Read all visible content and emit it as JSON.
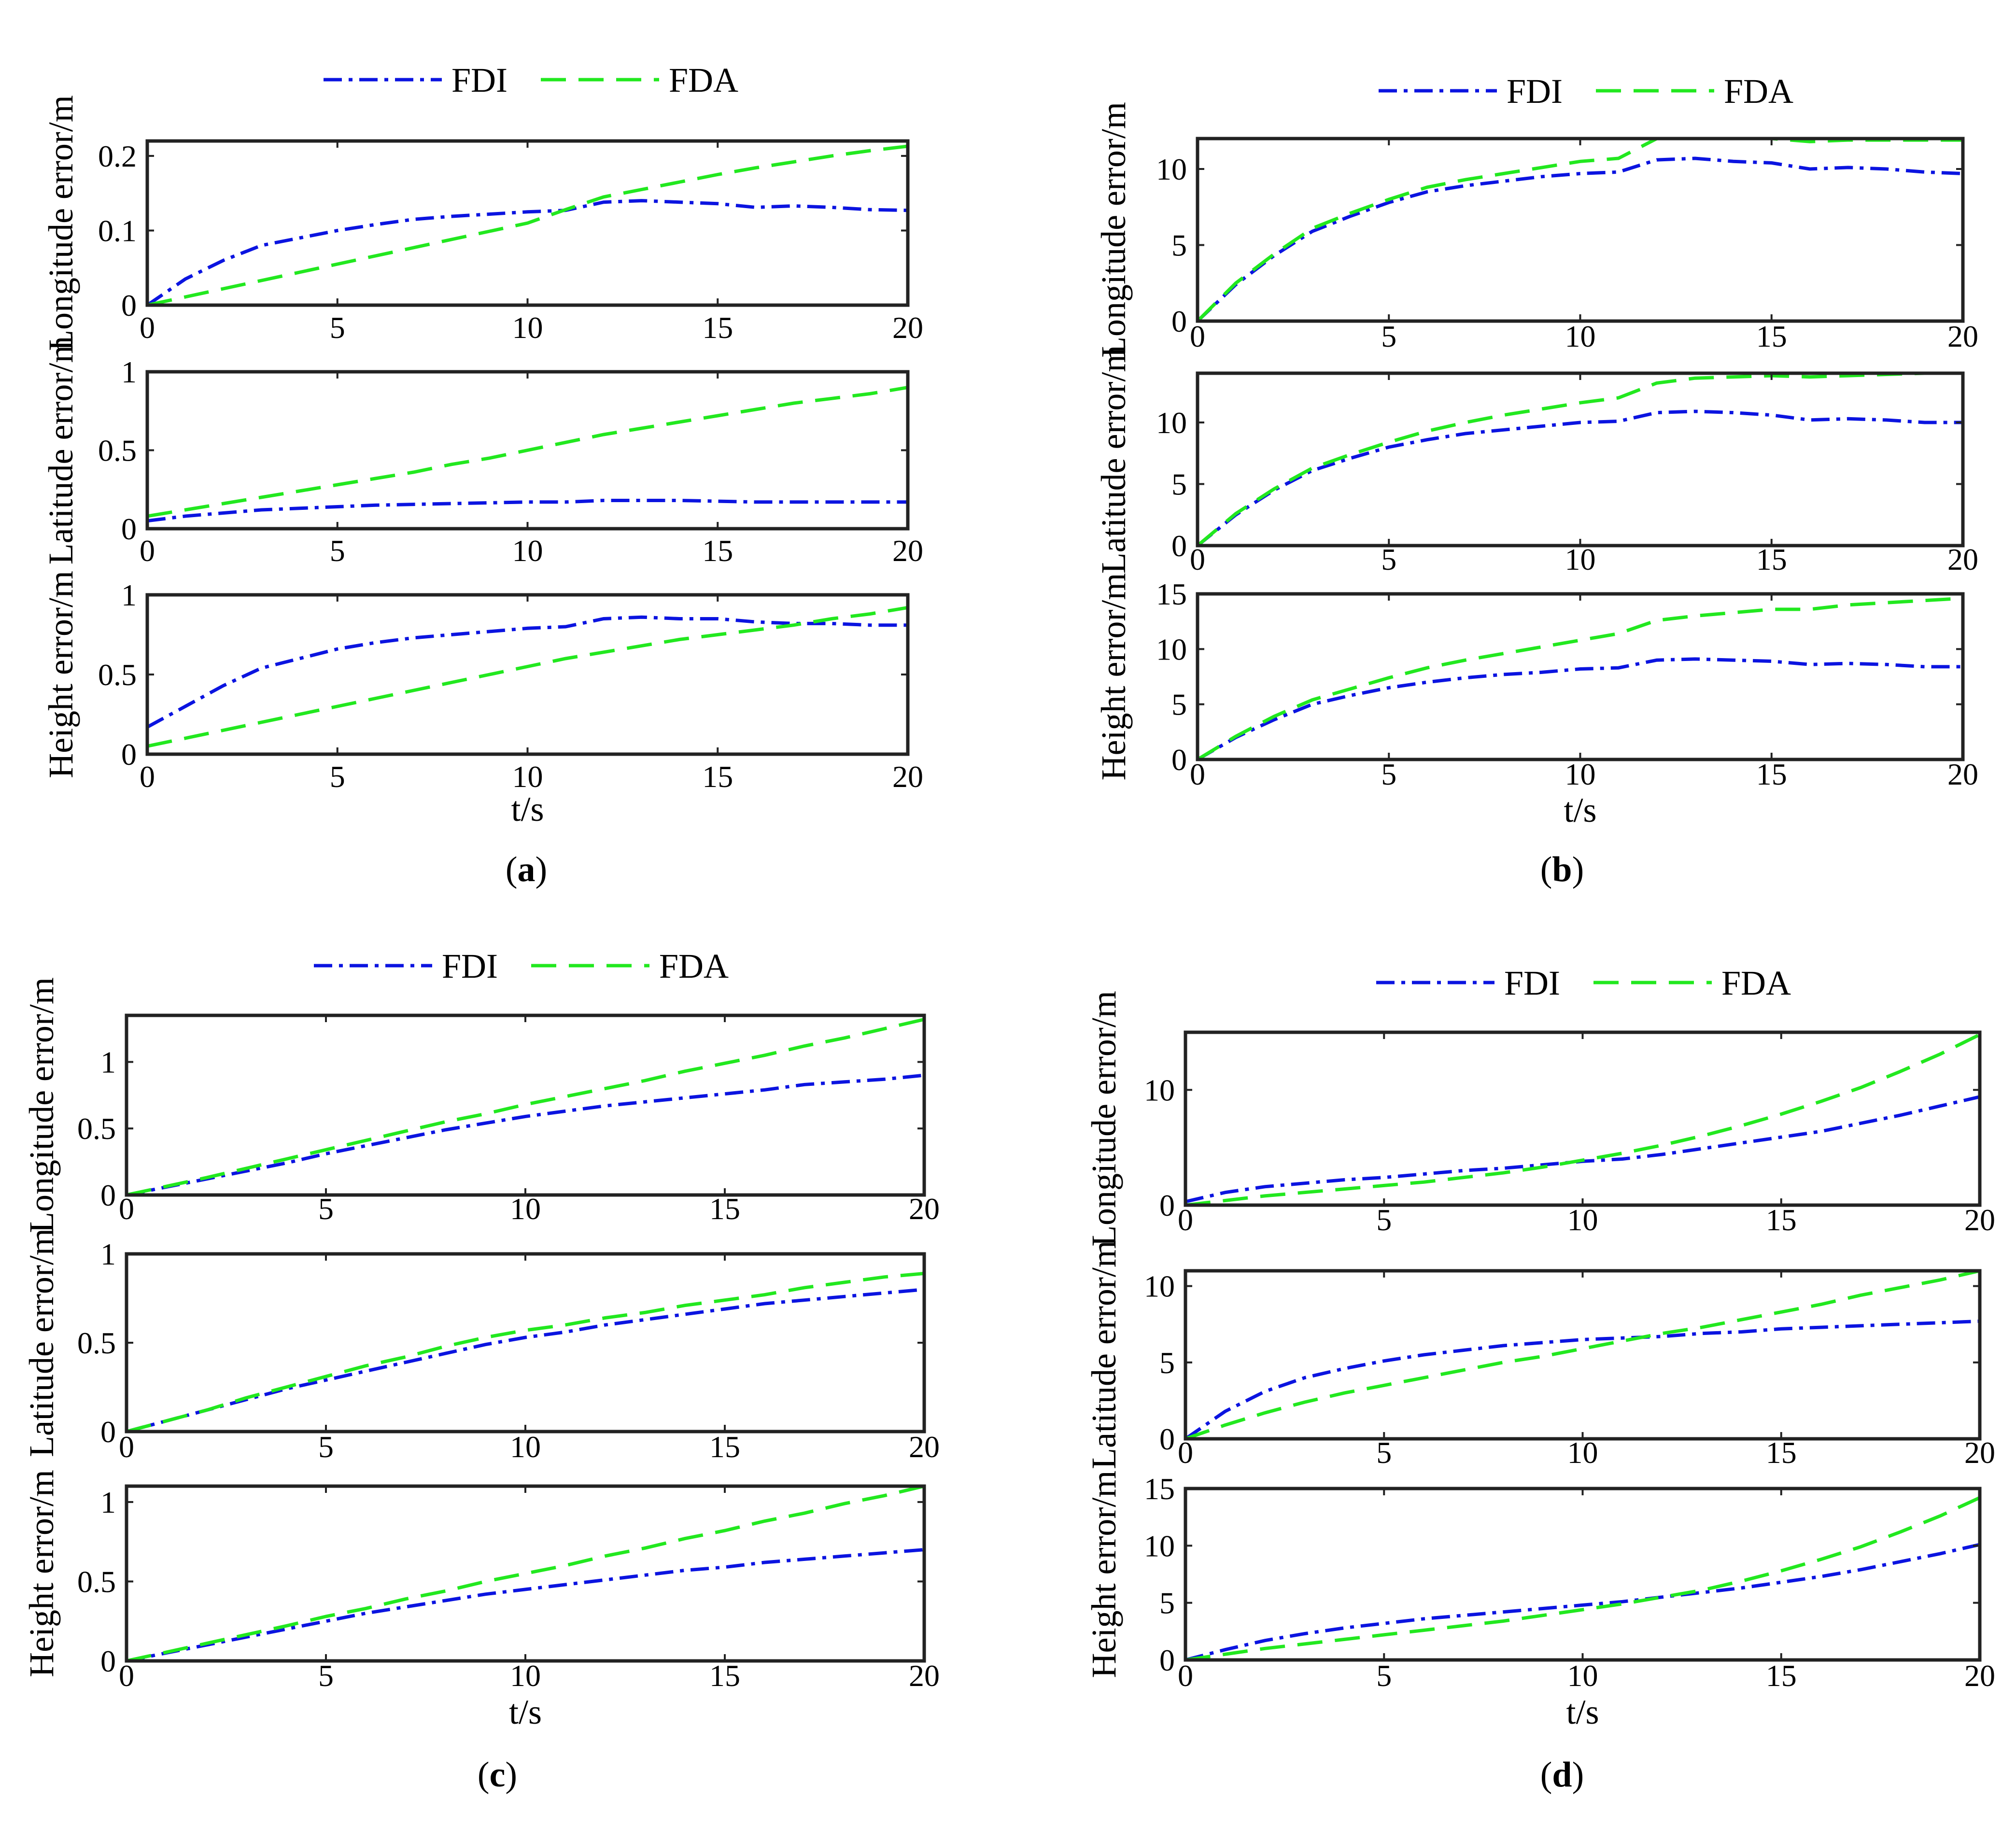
{
  "figure_caption_labels": [
    "a",
    "b",
    "c",
    "d"
  ],
  "legend": {
    "fdi_label": "FDI",
    "fda_label": "FDA"
  },
  "colors": {
    "fdi": "#0b14e0",
    "fda": "#22e81f",
    "axes": "#222222"
  },
  "chart_data": [
    {
      "panel": "a",
      "type": "line",
      "xlabel": "t/s",
      "x": [
        0,
        1,
        2,
        3,
        4,
        5,
        6,
        7,
        8,
        9,
        10,
        11,
        12,
        13,
        14,
        15,
        16,
        17,
        18,
        19,
        20
      ],
      "xlim": [
        0,
        20
      ],
      "xticks": [
        "0",
        "5",
        "10",
        "15",
        "20"
      ],
      "subplots": [
        {
          "ylabel": "Longitude error/m",
          "ylim": [
            0,
            0.22
          ],
          "yticks": [
            "0",
            "0.1",
            "0.2"
          ],
          "ytick_values": [
            0,
            0.1,
            0.2
          ],
          "series": [
            {
              "name": "FDI",
              "values": [
                0,
                0.035,
                0.06,
                0.08,
                0.09,
                0.1,
                0.108,
                0.115,
                0.119,
                0.122,
                0.125,
                0.127,
                0.138,
                0.14,
                0.138,
                0.136,
                0.131,
                0.133,
                0.131,
                0.128,
                0.127
              ]
            },
            {
              "name": "FDA",
              "values": [
                0,
                0.011,
                0.022,
                0.033,
                0.044,
                0.055,
                0.066,
                0.077,
                0.088,
                0.099,
                0.11,
                0.128,
                0.145,
                0.155,
                0.165,
                0.175,
                0.184,
                0.192,
                0.2,
                0.207,
                0.213
              ]
            }
          ]
        },
        {
          "ylabel": "Latitude error/m",
          "ylim": [
            0,
            1
          ],
          "yticks": [
            "0",
            "0.5",
            "1"
          ],
          "ytick_values": [
            0,
            0.5,
            1
          ],
          "series": [
            {
              "name": "FDI",
              "values": [
                0.05,
                0.08,
                0.1,
                0.12,
                0.13,
                0.14,
                0.15,
                0.155,
                0.16,
                0.165,
                0.17,
                0.17,
                0.18,
                0.18,
                0.18,
                0.175,
                0.17,
                0.17,
                0.17,
                0.17,
                0.17
              ]
            },
            {
              "name": "FDA",
              "values": [
                0.08,
                0.12,
                0.16,
                0.2,
                0.24,
                0.28,
                0.32,
                0.36,
                0.41,
                0.45,
                0.5,
                0.55,
                0.6,
                0.64,
                0.68,
                0.72,
                0.76,
                0.8,
                0.83,
                0.86,
                0.9
              ]
            }
          ]
        },
        {
          "ylabel": "Height error/m",
          "ylim": [
            0,
            1
          ],
          "yticks": [
            "0",
            "0.5",
            "1"
          ],
          "ytick_values": [
            0,
            0.5,
            1
          ],
          "series": [
            {
              "name": "FDI",
              "values": [
                0.17,
                0.3,
                0.43,
                0.54,
                0.6,
                0.66,
                0.7,
                0.73,
                0.75,
                0.77,
                0.79,
                0.8,
                0.85,
                0.86,
                0.85,
                0.85,
                0.83,
                0.82,
                0.82,
                0.81,
                0.81
              ]
            },
            {
              "name": "FDA",
              "values": [
                0.05,
                0.1,
                0.15,
                0.2,
                0.25,
                0.3,
                0.35,
                0.4,
                0.45,
                0.5,
                0.55,
                0.6,
                0.64,
                0.68,
                0.72,
                0.75,
                0.78,
                0.81,
                0.85,
                0.88,
                0.92
              ]
            }
          ]
        }
      ]
    },
    {
      "panel": "b",
      "type": "line",
      "xlabel": "t/s",
      "x": [
        0,
        1,
        2,
        3,
        4,
        5,
        6,
        7,
        8,
        9,
        10,
        11,
        12,
        13,
        14,
        15,
        16,
        17,
        18,
        19,
        20
      ],
      "xlim": [
        0,
        20
      ],
      "xticks": [
        "0",
        "5",
        "10",
        "15",
        "20"
      ],
      "subplots": [
        {
          "ylabel": "Longitude error/m",
          "ylim": [
            0,
            12
          ],
          "yticks": [
            "0",
            "5",
            "10"
          ],
          "ytick_values": [
            0,
            5,
            10
          ],
          "series": [
            {
              "name": "FDI",
              "values": [
                0,
                2.4,
                4.3,
                5.9,
                6.9,
                7.8,
                8.5,
                8.9,
                9.2,
                9.5,
                9.7,
                9.8,
                10.6,
                10.7,
                10.5,
                10.4,
                10,
                10.1,
                10,
                9.8,
                9.7
              ]
            },
            {
              "name": "FDA",
              "values": [
                0,
                2.5,
                4.4,
                6.1,
                7.1,
                8,
                8.8,
                9.3,
                9.7,
                10.1,
                10.5,
                10.7,
                12,
                12,
                12,
                12,
                11.8,
                11.9,
                11.9,
                11.9,
                11.9
              ]
            }
          ]
        },
        {
          "ylabel": "Latitude error/m",
          "ylim": [
            0,
            14
          ],
          "yticks": [
            "0",
            "5",
            "10"
          ],
          "ytick_values": [
            0,
            5,
            10
          ],
          "series": [
            {
              "name": "FDI",
              "values": [
                0,
                2.5,
                4.5,
                6.1,
                7.1,
                8,
                8.6,
                9.1,
                9.4,
                9.7,
                10,
                10.1,
                10.8,
                10.9,
                10.8,
                10.6,
                10.2,
                10.3,
                10.2,
                10,
                10
              ]
            },
            {
              "name": "FDA",
              "values": [
                0,
                2.6,
                4.6,
                6.3,
                7.4,
                8.4,
                9.3,
                10,
                10.6,
                11.1,
                11.6,
                12,
                13.2,
                13.6,
                13.7,
                13.8,
                13.7,
                13.8,
                13.9,
                14,
                14
              ]
            }
          ]
        },
        {
          "ylabel": "Height error/m",
          "ylim": [
            0,
            15
          ],
          "yticks": [
            "0",
            "5",
            "10",
            "15"
          ],
          "ytick_values": [
            0,
            5,
            10,
            15
          ],
          "series": [
            {
              "name": "FDI",
              "values": [
                0,
                2,
                3.6,
                5,
                5.8,
                6.5,
                7,
                7.4,
                7.7,
                7.9,
                8.2,
                8.3,
                9,
                9.1,
                9,
                8.9,
                8.6,
                8.7,
                8.6,
                8.4,
                8.4
              ]
            },
            {
              "name": "FDA",
              "values": [
                0,
                2.1,
                3.9,
                5.4,
                6.4,
                7.4,
                8.3,
                9,
                9.6,
                10.2,
                10.8,
                11.4,
                12.6,
                13,
                13.3,
                13.6,
                13.6,
                14,
                14.2,
                14.4,
                14.6
              ]
            }
          ]
        }
      ]
    },
    {
      "panel": "c",
      "type": "line",
      "xlabel": "t/s",
      "x": [
        0,
        1,
        2,
        3,
        4,
        5,
        6,
        7,
        8,
        9,
        10,
        11,
        12,
        13,
        14,
        15,
        16,
        17,
        18,
        19,
        20
      ],
      "xlim": [
        0,
        20
      ],
      "xticks": [
        "0",
        "5",
        "10",
        "15",
        "20"
      ],
      "subplots": [
        {
          "ylabel": "Longitude error/m",
          "ylim": [
            0,
            1.35
          ],
          "yticks": [
            "0",
            "0.5",
            "1"
          ],
          "ytick_values": [
            0,
            0.5,
            1
          ],
          "series": [
            {
              "name": "FDI",
              "values": [
                0,
                0.06,
                0.12,
                0.18,
                0.24,
                0.31,
                0.37,
                0.43,
                0.49,
                0.54,
                0.59,
                0.63,
                0.67,
                0.7,
                0.73,
                0.76,
                0.79,
                0.83,
                0.85,
                0.87,
                0.9
              ]
            },
            {
              "name": "FDA",
              "values": [
                0,
                0.065,
                0.13,
                0.2,
                0.27,
                0.34,
                0.41,
                0.48,
                0.55,
                0.61,
                0.68,
                0.74,
                0.8,
                0.86,
                0.93,
                0.99,
                1.05,
                1.12,
                1.18,
                1.25,
                1.32
              ]
            }
          ]
        },
        {
          "ylabel": "Latitude error/m",
          "ylim": [
            0,
            1
          ],
          "yticks": [
            "0",
            "0.5",
            "1"
          ],
          "ytick_values": [
            0,
            0.5,
            1
          ],
          "series": [
            {
              "name": "FDI",
              "values": [
                0,
                0.06,
                0.12,
                0.18,
                0.24,
                0.29,
                0.34,
                0.39,
                0.44,
                0.49,
                0.53,
                0.56,
                0.6,
                0.63,
                0.66,
                0.69,
                0.72,
                0.74,
                0.76,
                0.78,
                0.8
              ]
            },
            {
              "name": "FDA",
              "values": [
                0,
                0.06,
                0.12,
                0.19,
                0.25,
                0.31,
                0.37,
                0.42,
                0.48,
                0.53,
                0.57,
                0.6,
                0.64,
                0.67,
                0.71,
                0.74,
                0.77,
                0.81,
                0.84,
                0.87,
                0.89
              ]
            }
          ]
        },
        {
          "ylabel": "Height error/m",
          "ylim": [
            0,
            1.1
          ],
          "yticks": [
            "0",
            "0.5",
            "1"
          ],
          "ytick_values": [
            0,
            0.5,
            1
          ],
          "series": [
            {
              "name": "FDI",
              "values": [
                0,
                0.05,
                0.1,
                0.15,
                0.2,
                0.25,
                0.3,
                0.34,
                0.38,
                0.42,
                0.45,
                0.48,
                0.51,
                0.54,
                0.57,
                0.59,
                0.62,
                0.64,
                0.66,
                0.68,
                0.7
              ]
            },
            {
              "name": "FDA",
              "values": [
                0,
                0.055,
                0.11,
                0.165,
                0.22,
                0.28,
                0.33,
                0.39,
                0.44,
                0.5,
                0.55,
                0.6,
                0.66,
                0.71,
                0.77,
                0.82,
                0.88,
                0.93,
                0.99,
                1.04,
                1.1
              ]
            }
          ]
        }
      ]
    },
    {
      "panel": "d",
      "type": "line",
      "xlabel": "t/s",
      "x": [
        0,
        1,
        2,
        3,
        4,
        5,
        6,
        7,
        8,
        9,
        10,
        11,
        12,
        13,
        14,
        15,
        16,
        17,
        18,
        19,
        20
      ],
      "xlim": [
        0,
        20
      ],
      "xticks": [
        "0",
        "5",
        "10",
        "15",
        "20"
      ],
      "subplots": [
        {
          "ylabel": "Longitude error/m",
          "ylim": [
            0,
            15
          ],
          "yticks": [
            "0",
            "10"
          ],
          "ytick_values": [
            0,
            10
          ],
          "series": [
            {
              "name": "FDI",
              "values": [
                0.3,
                1.1,
                1.6,
                1.9,
                2.2,
                2.4,
                2.7,
                3,
                3.2,
                3.5,
                3.8,
                4,
                4.4,
                4.9,
                5.4,
                5.9,
                6.4,
                7.1,
                7.8,
                8.6,
                9.4
              ]
            },
            {
              "name": "FDA",
              "values": [
                0,
                0.4,
                0.8,
                1.1,
                1.4,
                1.7,
                2,
                2.4,
                2.8,
                3.3,
                3.9,
                4.5,
                5.2,
                6,
                6.9,
                7.9,
                9,
                10.2,
                11.6,
                13.1,
                14.8
              ]
            }
          ]
        },
        {
          "ylabel": "Latitude error/m",
          "ylim": [
            0,
            11
          ],
          "yticks": [
            "0",
            "5",
            "10"
          ],
          "ytick_values": [
            0,
            5,
            10
          ],
          "series": [
            {
              "name": "FDI",
              "values": [
                0,
                1.8,
                3.1,
                4,
                4.6,
                5.1,
                5.5,
                5.8,
                6.1,
                6.3,
                6.5,
                6.6,
                6.7,
                6.9,
                7,
                7.2,
                7.3,
                7.4,
                7.5,
                7.6,
                7.7
              ]
            },
            {
              "name": "FDA",
              "values": [
                0,
                0.9,
                1.7,
                2.4,
                3,
                3.5,
                4,
                4.5,
                5,
                5.4,
                5.9,
                6.4,
                6.9,
                7.3,
                7.8,
                8.3,
                8.8,
                9.4,
                9.9,
                10.4,
                11
              ]
            }
          ]
        },
        {
          "ylabel": "Height error/m",
          "ylim": [
            0,
            15
          ],
          "yticks": [
            "0",
            "5",
            "10",
            "15"
          ],
          "ytick_values": [
            0,
            5,
            10,
            15
          ],
          "series": [
            {
              "name": "FDI",
              "values": [
                0,
                0.9,
                1.7,
                2.3,
                2.8,
                3.2,
                3.6,
                3.9,
                4.2,
                4.5,
                4.8,
                5.1,
                5.5,
                5.9,
                6.3,
                6.8,
                7.3,
                7.9,
                8.6,
                9.3,
                10.1
              ]
            },
            {
              "name": "FDA",
              "values": [
                0,
                0.5,
                1,
                1.4,
                1.8,
                2.2,
                2.6,
                3,
                3.4,
                3.9,
                4.4,
                4.9,
                5.5,
                6.1,
                6.9,
                7.8,
                8.8,
                9.9,
                11.2,
                12.6,
                14.2
              ]
            }
          ]
        }
      ]
    }
  ]
}
